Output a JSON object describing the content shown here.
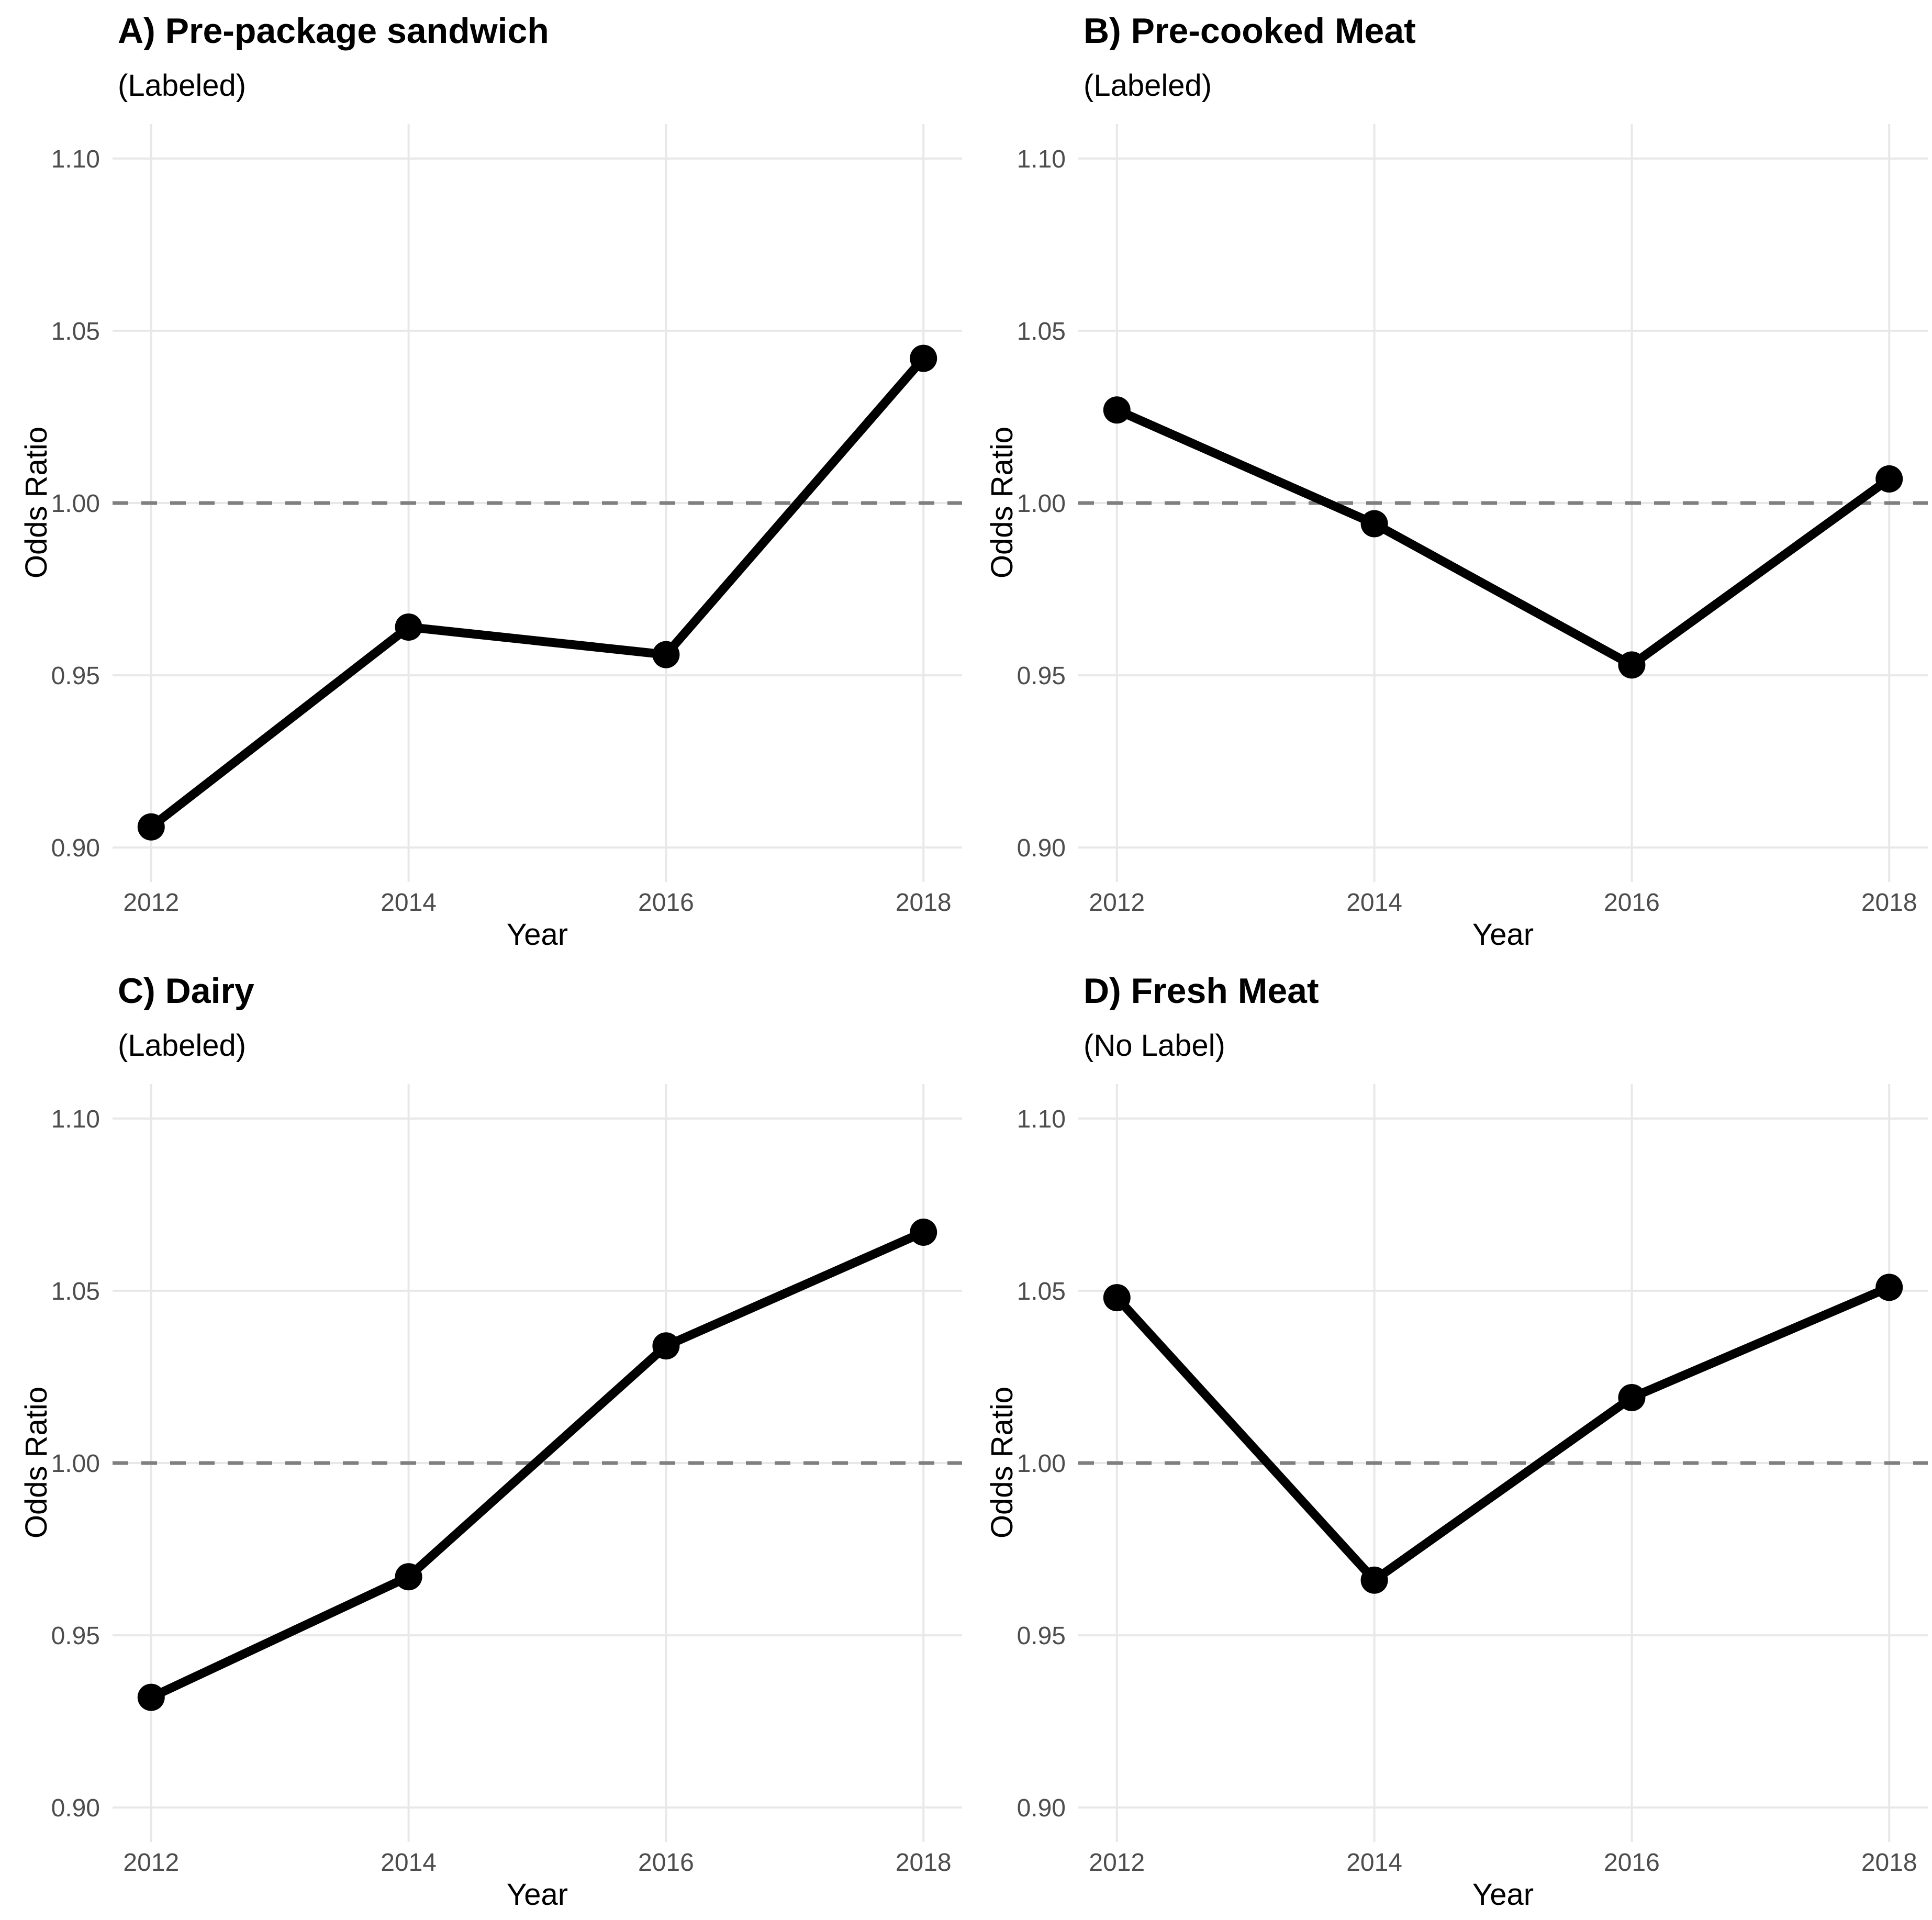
{
  "figure": {
    "description": "Four-panel line chart figure of odds ratios by year for food categories",
    "colors": {
      "series": "#000000",
      "reference_line": "#7f7f7f",
      "gridline": "#e8e8e8",
      "tick_text": "#4d4d4d",
      "background": "#ffffff"
    }
  },
  "chart_data": [
    {
      "type": "line",
      "title": "A) Pre-package sandwich",
      "subtitle": "(Labeled)",
      "xlabel": "Year",
      "ylabel": "Odds Ratio",
      "x": [
        2012,
        2014,
        2016,
        2018
      ],
      "values": [
        0.906,
        0.964,
        0.956,
        1.042
      ],
      "reference_line_y": 1.0,
      "yticks": [
        0.9,
        0.95,
        1.0,
        1.05,
        1.1
      ],
      "ytick_labels": [
        "0.90",
        "0.95",
        "1.00",
        "1.05",
        "1.10"
      ],
      "xtick_labels": [
        "2012",
        "2014",
        "2016",
        "2018"
      ],
      "ylim": [
        0.89,
        1.11
      ],
      "xlim": [
        2011.7,
        2018.3
      ],
      "grid": "major only",
      "legend": "none"
    },
    {
      "type": "line",
      "title": "B) Pre-cooked Meat",
      "subtitle": "(Labeled)",
      "xlabel": "Year",
      "ylabel": "Odds Ratio",
      "x": [
        2012,
        2014,
        2016,
        2018
      ],
      "values": [
        1.027,
        0.994,
        0.953,
        1.007
      ],
      "reference_line_y": 1.0,
      "yticks": [
        0.9,
        0.95,
        1.0,
        1.05,
        1.1
      ],
      "ytick_labels": [
        "0.90",
        "0.95",
        "1.00",
        "1.05",
        "1.10"
      ],
      "xtick_labels": [
        "2012",
        "2014",
        "2016",
        "2018"
      ],
      "ylim": [
        0.89,
        1.11
      ],
      "xlim": [
        2011.7,
        2018.3
      ],
      "grid": "major only",
      "legend": "none"
    },
    {
      "type": "line",
      "title": "C) Dairy",
      "subtitle": "(Labeled)",
      "xlabel": "Year",
      "ylabel": "Odds Ratio",
      "x": [
        2012,
        2014,
        2016,
        2018
      ],
      "values": [
        0.932,
        0.967,
        1.034,
        1.067
      ],
      "reference_line_y": 1.0,
      "yticks": [
        0.9,
        0.95,
        1.0,
        1.05,
        1.1
      ],
      "ytick_labels": [
        "0.90",
        "0.95",
        "1.00",
        "1.05",
        "1.10"
      ],
      "xtick_labels": [
        "2012",
        "2014",
        "2016",
        "2018"
      ],
      "ylim": [
        0.89,
        1.11
      ],
      "xlim": [
        2011.7,
        2018.3
      ],
      "grid": "major only",
      "legend": "none"
    },
    {
      "type": "line",
      "title": "D) Fresh Meat",
      "subtitle": "(No Label)",
      "xlabel": "Year",
      "ylabel": "Odds Ratio",
      "x": [
        2012,
        2014,
        2016,
        2018
      ],
      "values": [
        1.048,
        0.966,
        1.019,
        1.051
      ],
      "reference_line_y": 1.0,
      "yticks": [
        0.9,
        0.95,
        1.0,
        1.05,
        1.1
      ],
      "ytick_labels": [
        "0.90",
        "0.95",
        "1.00",
        "1.05",
        "1.10"
      ],
      "xtick_labels": [
        "2012",
        "2014",
        "2016",
        "2018"
      ],
      "ylim": [
        0.89,
        1.11
      ],
      "xlim": [
        2011.7,
        2018.3
      ],
      "grid": "major only",
      "legend": "none"
    }
  ]
}
